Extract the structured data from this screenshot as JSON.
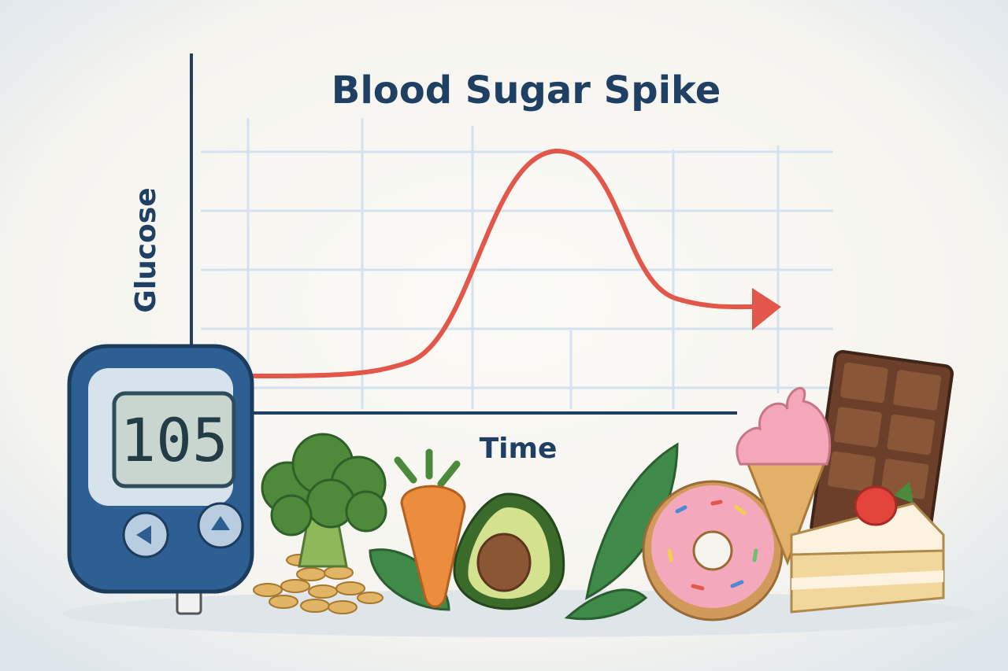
{
  "title": "Blood Sugar Spike",
  "y_axis_label": "Glucose",
  "x_axis_label": "Time",
  "meter": {
    "reading": "105"
  }
}
